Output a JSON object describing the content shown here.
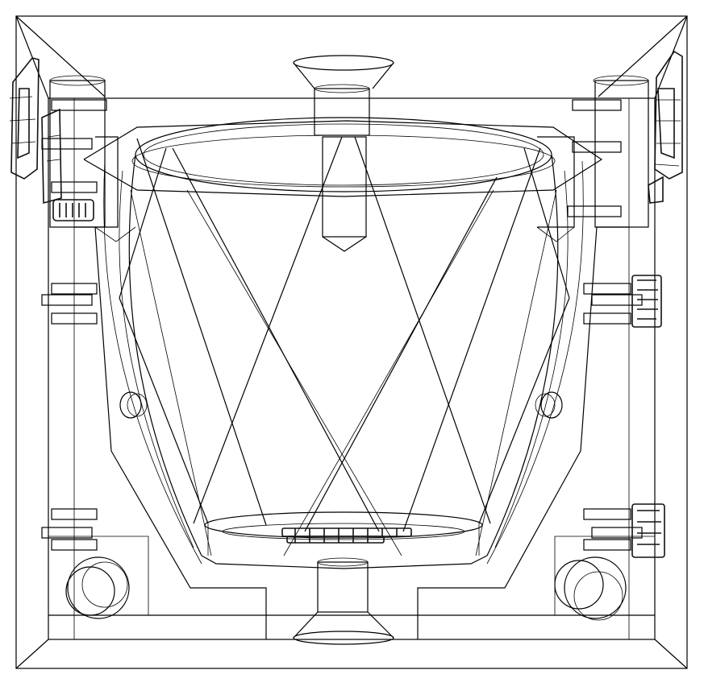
{
  "drawing": {
    "style": "wireframe",
    "stroke_color": "#000000",
    "background_color": "#ffffff",
    "text": []
  }
}
